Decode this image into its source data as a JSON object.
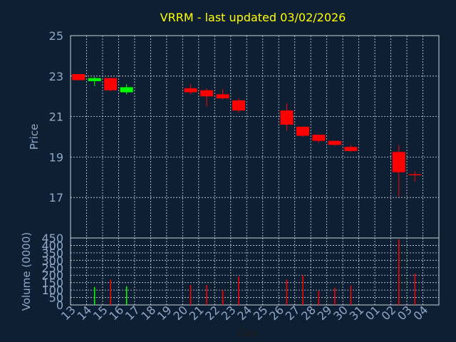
{
  "title": "VRRM - last updated 03/02/2026",
  "colors": {
    "background": "#0f1f33",
    "plot_border": "#c8d0d8",
    "grid": "#d0d8e0",
    "title": "#ffff00",
    "axis_text": "#8fa8c8",
    "label_text": "#1c1c1c",
    "up": "#00ff00",
    "down": "#ff0000"
  },
  "chart_data": [
    {
      "type": "candlestick",
      "ylabel": "Price",
      "ylim": [
        15,
        25
      ],
      "yticks": [
        17,
        19,
        21,
        23,
        25
      ],
      "grid": true,
      "days": [
        "13",
        "14",
        "15",
        "16",
        "17",
        "18",
        "19",
        "20",
        "21",
        "22",
        "23",
        "24",
        "25",
        "26",
        "27",
        "28",
        "29",
        "30",
        "31",
        "01",
        "02",
        "03",
        "04"
      ],
      "candles": [
        {
          "day": "13",
          "open": 23.1,
          "close": 22.8,
          "high": 23.1,
          "low": 22.8
        },
        {
          "day": "14",
          "open": 22.75,
          "close": 22.9,
          "high": 22.95,
          "low": 22.5
        },
        {
          "day": "15",
          "open": 22.9,
          "close": 22.3,
          "high": 22.9,
          "low": 22.25
        },
        {
          "day": "16",
          "open": 22.2,
          "close": 22.45,
          "high": 22.6,
          "low": 22.1
        },
        {
          "day": "20",
          "open": 22.4,
          "close": 22.2,
          "high": 22.6,
          "low": 22.1
        },
        {
          "day": "21",
          "open": 22.3,
          "close": 22.0,
          "high": 22.4,
          "low": 21.5
        },
        {
          "day": "22",
          "open": 22.1,
          "close": 21.9,
          "high": 22.35,
          "low": 21.85
        },
        {
          "day": "23",
          "open": 21.8,
          "close": 21.3,
          "high": 21.9,
          "low": 21.2
        },
        {
          "day": "26",
          "open": 21.3,
          "close": 20.6,
          "high": 21.65,
          "low": 20.3
        },
        {
          "day": "27",
          "open": 20.5,
          "close": 20.05,
          "high": 20.5,
          "low": 20.0
        },
        {
          "day": "28",
          "open": 20.1,
          "close": 19.8,
          "high": 20.1,
          "low": 19.7
        },
        {
          "day": "29",
          "open": 19.8,
          "close": 19.6,
          "high": 19.8,
          "low": 19.55
        },
        {
          "day": "30",
          "open": 19.5,
          "close": 19.3,
          "high": 19.6,
          "low": 19.25
        },
        {
          "day": "02",
          "open": 19.25,
          "close": 18.25,
          "high": 19.6,
          "low": 17.05
        },
        {
          "day": "03",
          "open": 18.15,
          "close": 18.1,
          "high": 18.3,
          "low": 17.8
        }
      ]
    },
    {
      "type": "bar",
      "ylabel": "Volume (0000)",
      "xlabel": "Day",
      "ylim": [
        0,
        450
      ],
      "yticks": [
        0,
        50,
        100,
        150,
        200,
        250,
        300,
        350,
        400,
        450
      ],
      "grid": true,
      "volumes": [
        {
          "day": "14",
          "value": 120,
          "dir": "up"
        },
        {
          "day": "15",
          "value": 170,
          "dir": "down"
        },
        {
          "day": "16",
          "value": 125,
          "dir": "up"
        },
        {
          "day": "20",
          "value": 135,
          "dir": "down"
        },
        {
          "day": "21",
          "value": 135,
          "dir": "down"
        },
        {
          "day": "22",
          "value": 100,
          "dir": "down"
        },
        {
          "day": "23",
          "value": 190,
          "dir": "down"
        },
        {
          "day": "26",
          "value": 170,
          "dir": "down"
        },
        {
          "day": "27",
          "value": 200,
          "dir": "down"
        },
        {
          "day": "28",
          "value": 95,
          "dir": "down"
        },
        {
          "day": "29",
          "value": 115,
          "dir": "down"
        },
        {
          "day": "30",
          "value": 130,
          "dir": "down"
        },
        {
          "day": "02",
          "value": 440,
          "dir": "down"
        },
        {
          "day": "03",
          "value": 210,
          "dir": "down"
        }
      ]
    }
  ]
}
